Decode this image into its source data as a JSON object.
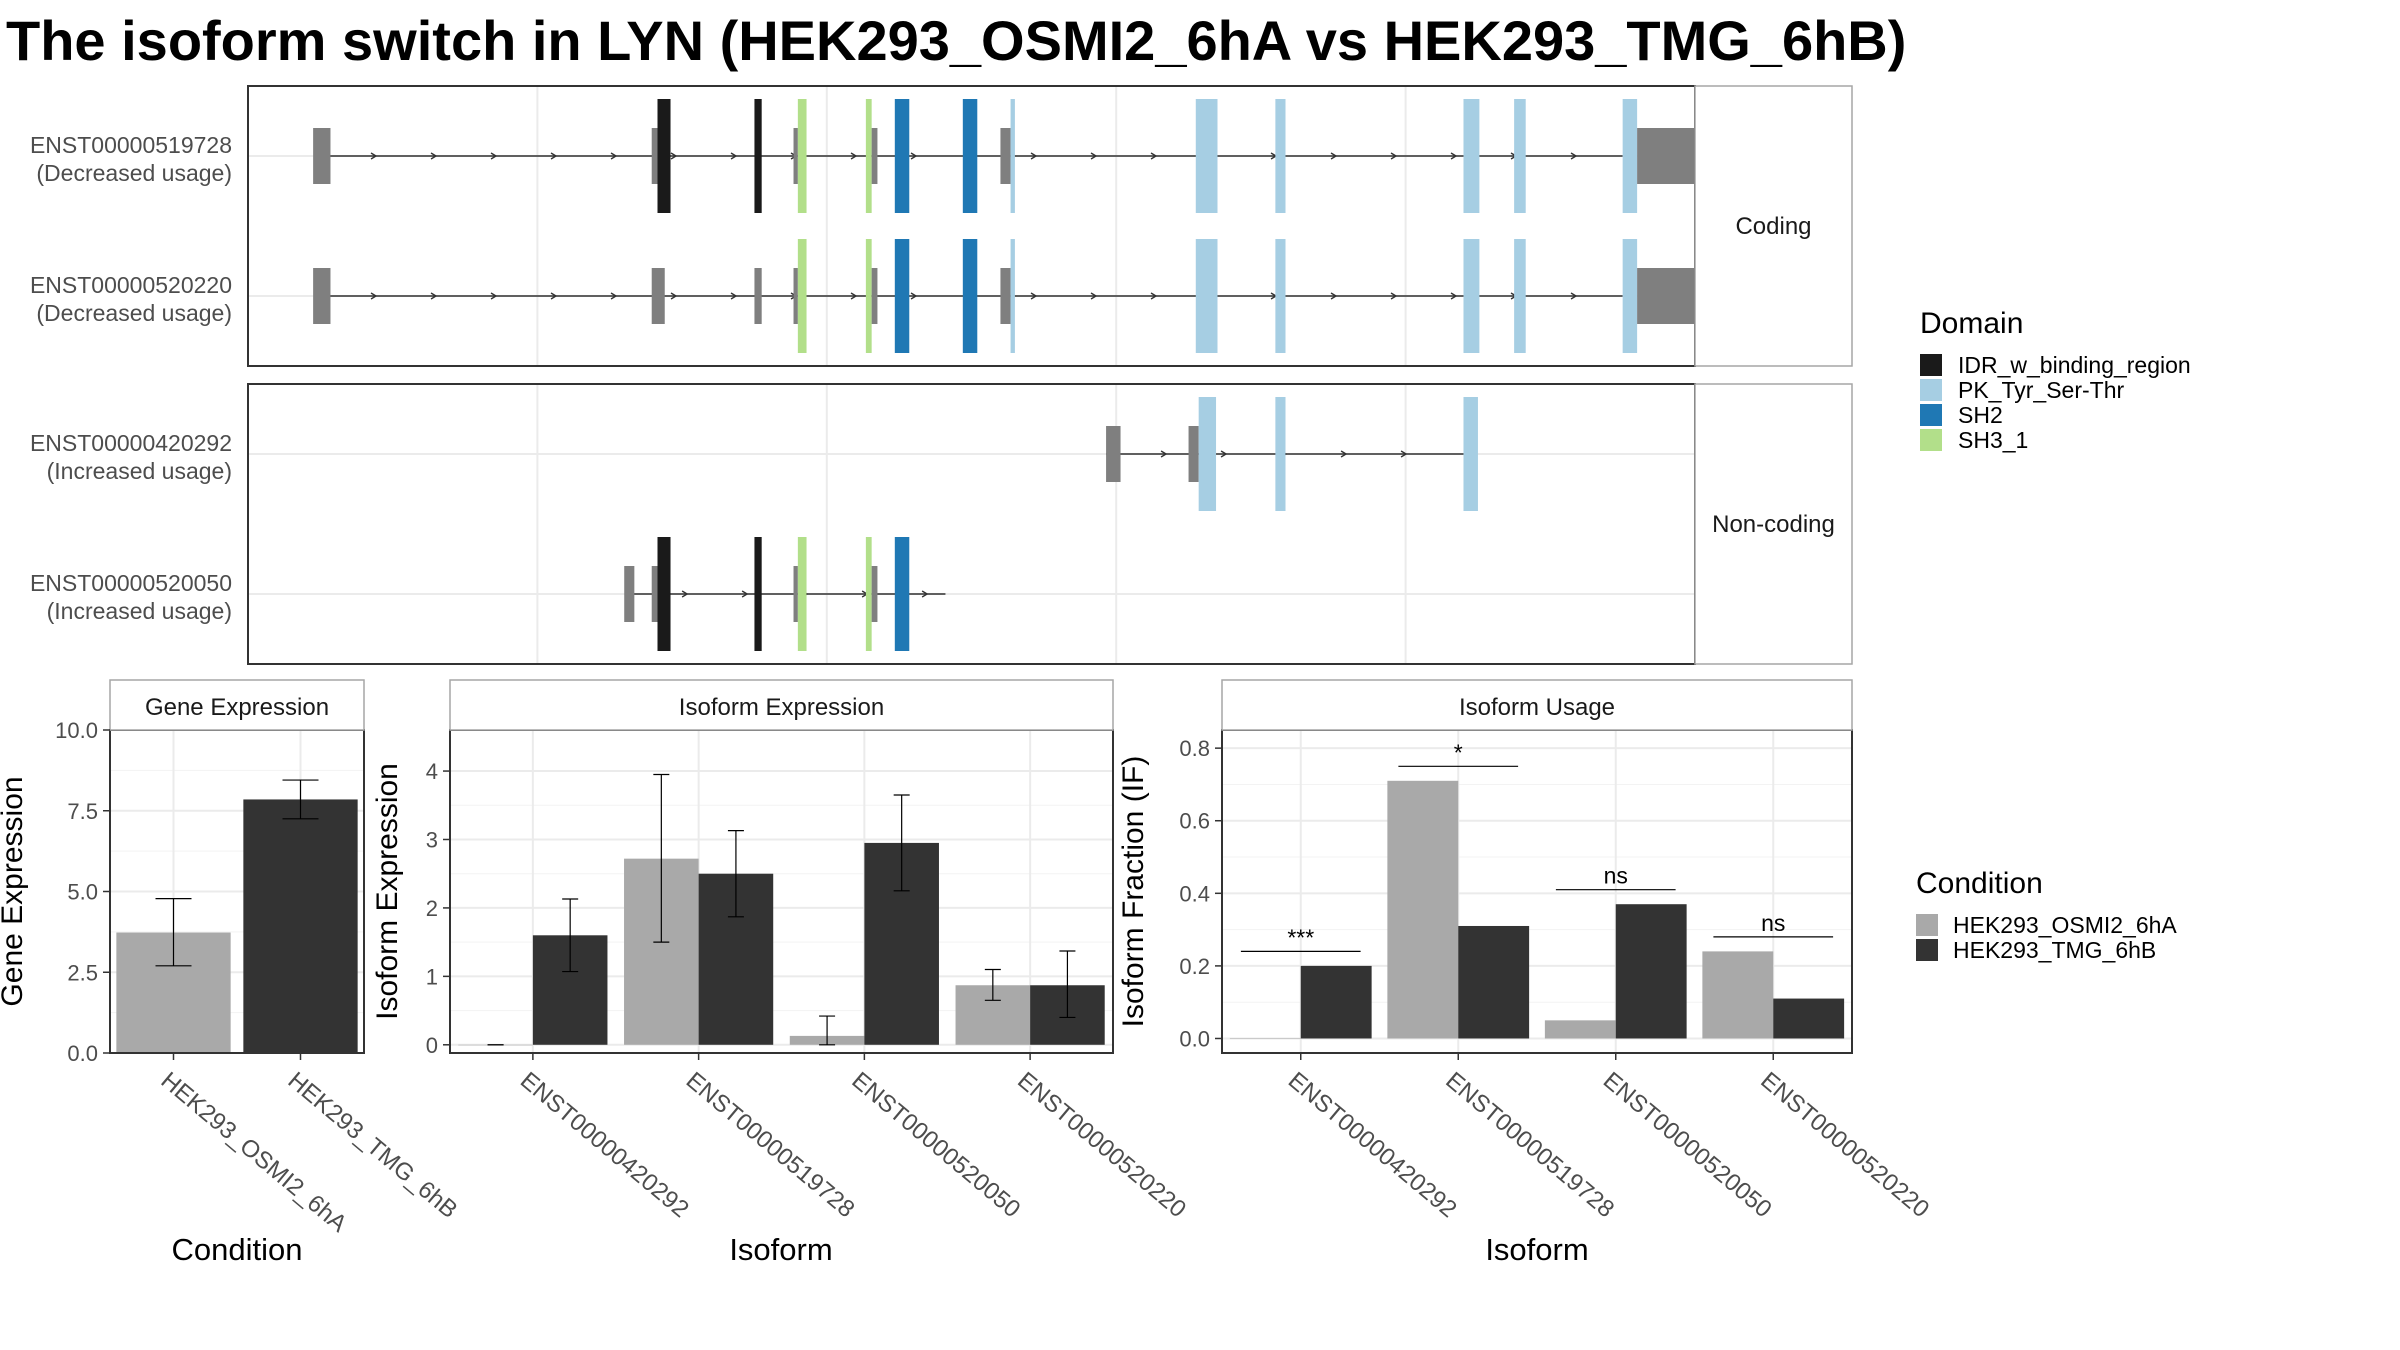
{
  "title": "The isoform switch in LYN (HEK293_OSMI2_6hA vs HEK293_TMG_6hB)",
  "colors": {
    "intron": "#333333",
    "utr": "#7f7f7f",
    "condition_a": "#a9a9a9",
    "condition_b": "#333333",
    "panel_border": "#333333",
    "strip_border": "#a6a6a6",
    "grid": "#ebebeb"
  },
  "structure": {
    "x_range": [
      0,
      1000
    ],
    "domain_colors": {
      "IDR_w_binding_region": "#1a1a1a",
      "PK_Tyr_Ser-Thr": "#a6cee3",
      "SH2": "#1f78b4",
      "SH3_1": "#b2df8a"
    },
    "legend_title": "Domain",
    "legend_items": [
      "IDR_w_binding_region",
      "PK_Tyr_Ser-Thr",
      "SH2",
      "SH3_1"
    ],
    "facets": [
      {
        "label": "Coding",
        "transcripts": [
          {
            "id": "ENST00000519728",
            "note": "(Decreased usage)",
            "intron": [
              47,
              950
            ],
            "segments": [
              {
                "x": [
                  45,
                  57
                ],
                "h": "utr"
              },
              {
                "x": [
                  279,
                  283
                ],
                "h": "utr"
              },
              {
                "x": [
                  283,
                  292
                ],
                "h": "IDR_w_binding_region"
              },
              {
                "x": [
                  350,
                  355
                ],
                "h": "IDR_w_binding_region"
              },
              {
                "x": [
                  377,
                  380
                ],
                "h": "utr"
              },
              {
                "x": [
                  380,
                  386
                ],
                "h": "SH3_1"
              },
              {
                "x": [
                  427,
                  431
                ],
                "h": "SH3_1"
              },
              {
                "x": [
                  431,
                  435
                ],
                "h": "utr"
              },
              {
                "x": [
                  447,
                  457
                ],
                "h": "SH2"
              },
              {
                "x": [
                  494,
                  504
                ],
                "h": "SH2"
              },
              {
                "x": [
                  520,
                  527
                ],
                "h": "utr"
              },
              {
                "x": [
                  527,
                  530
                ],
                "h": "PK_Tyr_Ser-Thr"
              },
              {
                "x": [
                  655,
                  670
                ],
                "h": "PK_Tyr_Ser-Thr"
              },
              {
                "x": [
                  710,
                  717
                ],
                "h": "PK_Tyr_Ser-Thr"
              },
              {
                "x": [
                  840,
                  851
                ],
                "h": "PK_Tyr_Ser-Thr"
              },
              {
                "x": [
                  875,
                  883
                ],
                "h": "PK_Tyr_Ser-Thr"
              },
              {
                "x": [
                  950,
                  960
                ],
                "h": "PK_Tyr_Ser-Thr"
              },
              {
                "x": [
                  960,
                  1020
                ],
                "h": "utr"
              }
            ]
          },
          {
            "id": "ENST00000520220",
            "note": "(Decreased usage)",
            "intron": [
              47,
              950
            ],
            "segments": [
              {
                "x": [
                  45,
                  57
                ],
                "h": "utr"
              },
              {
                "x": [
                  279,
                  288
                ],
                "h": "utr"
              },
              {
                "x": [
                  350,
                  355
                ],
                "h": "utr"
              },
              {
                "x": [
                  377,
                  380
                ],
                "h": "utr"
              },
              {
                "x": [
                  380,
                  386
                ],
                "h": "SH3_1"
              },
              {
                "x": [
                  427,
                  431
                ],
                "h": "SH3_1"
              },
              {
                "x": [
                  431,
                  435
                ],
                "h": "utr"
              },
              {
                "x": [
                  447,
                  457
                ],
                "h": "SH2"
              },
              {
                "x": [
                  494,
                  504
                ],
                "h": "SH2"
              },
              {
                "x": [
                  520,
                  527
                ],
                "h": "utr"
              },
              {
                "x": [
                  527,
                  530
                ],
                "h": "PK_Tyr_Ser-Thr"
              },
              {
                "x": [
                  655,
                  670
                ],
                "h": "PK_Tyr_Ser-Thr"
              },
              {
                "x": [
                  710,
                  717
                ],
                "h": "PK_Tyr_Ser-Thr"
              },
              {
                "x": [
                  840,
                  851
                ],
                "h": "PK_Tyr_Ser-Thr"
              },
              {
                "x": [
                  875,
                  883
                ],
                "h": "PK_Tyr_Ser-Thr"
              },
              {
                "x": [
                  950,
                  960
                ],
                "h": "PK_Tyr_Ser-Thr"
              },
              {
                "x": [
                  960,
                  1020
                ],
                "h": "utr"
              }
            ]
          }
        ]
      },
      {
        "label": "Non-coding",
        "transcripts": [
          {
            "id": "ENST00000420292",
            "note": "(Increased usage)",
            "intron": [
              593,
              840
            ],
            "segments": [
              {
                "x": [
                  593,
                  603
                ],
                "h": "utr"
              },
              {
                "x": [
                  650,
                  657
                ],
                "h": "utr"
              },
              {
                "x": [
                  657,
                  669
                ],
                "h": "PK_Tyr_Ser-Thr"
              },
              {
                "x": [
                  710,
                  717
                ],
                "h": "PK_Tyr_Ser-Thr"
              },
              {
                "x": [
                  840,
                  850
                ],
                "h": "PK_Tyr_Ser-Thr"
              }
            ]
          },
          {
            "id": "ENST00000520050",
            "note": "(Increased usage)",
            "intron": [
              262,
              482
            ],
            "segments": [
              {
                "x": [
                  260,
                  267
                ],
                "h": "utr"
              },
              {
                "x": [
                  279,
                  283
                ],
                "h": "utr"
              },
              {
                "x": [
                  283,
                  292
                ],
                "h": "IDR_w_binding_region"
              },
              {
                "x": [
                  350,
                  355
                ],
                "h": "IDR_w_binding_region"
              },
              {
                "x": [
                  377,
                  380
                ],
                "h": "utr"
              },
              {
                "x": [
                  380,
                  386
                ],
                "h": "SH3_1"
              },
              {
                "x": [
                  427,
                  431
                ],
                "h": "SH3_1"
              },
              {
                "x": [
                  431,
                  435
                ],
                "h": "utr"
              },
              {
                "x": [
                  447,
                  457
                ],
                "h": "SH2"
              }
            ]
          }
        ]
      }
    ]
  },
  "chart_data": [
    {
      "type": "bar",
      "title": "Gene Expression",
      "xlabel": "Condition",
      "ylabel": "Gene Expression",
      "categories": [
        "HEK293_OSMI2_6hA",
        "HEK293_TMG_6hB"
      ],
      "values": [
        3.73,
        7.85
      ],
      "error": [
        [
          2.7,
          4.78
        ],
        [
          7.25,
          8.45
        ]
      ],
      "ylim": [
        0,
        10
      ],
      "yticks": [
        "0.0",
        "2.5",
        "5.0",
        "7.5",
        "10.0"
      ],
      "ytick_values": [
        0,
        2.5,
        5,
        7.5,
        10
      ],
      "grid": true
    },
    {
      "type": "bar",
      "title": "Isoform Expression",
      "xlabel": "Isoform",
      "ylabel": "Isoform Expression",
      "categories": [
        "ENST00000420292",
        "ENST00000519728",
        "ENST00000520050",
        "ENST00000520220"
      ],
      "series": [
        {
          "name": "HEK293_OSMI2_6hA",
          "values": [
            0.0,
            2.72,
            0.13,
            0.87
          ],
          "error": [
            [
              0.0,
              0.0
            ],
            [
              1.5,
              3.95
            ],
            [
              0.0,
              0.42
            ],
            [
              0.65,
              1.1
            ]
          ]
        },
        {
          "name": "HEK293_TMG_6hB",
          "values": [
            1.6,
            2.5,
            2.95,
            0.87
          ],
          "error": [
            [
              1.07,
              2.13
            ],
            [
              1.87,
              3.13
            ],
            [
              2.25,
              3.65
            ],
            [
              0.4,
              1.37
            ]
          ]
        }
      ],
      "ylim": [
        -0.12,
        4.6
      ],
      "yticks": [
        "0",
        "1",
        "2",
        "3",
        "4"
      ],
      "ytick_values": [
        0,
        1,
        2,
        3,
        4
      ],
      "grid": true
    },
    {
      "type": "bar",
      "title": "Isoform Usage",
      "xlabel": "Isoform",
      "ylabel": "Isoform Fraction (IF)",
      "categories": [
        "ENST00000420292",
        "ENST00000519728",
        "ENST00000520050",
        "ENST00000520220"
      ],
      "series": [
        {
          "name": "HEK293_OSMI2_6hA",
          "values": [
            0.0,
            0.71,
            0.05,
            0.24
          ]
        },
        {
          "name": "HEK293_TMG_6hB",
          "values": [
            0.2,
            0.31,
            0.37,
            0.11
          ]
        }
      ],
      "annotations": [
        {
          "label": "***",
          "y": 0.24
        },
        {
          "label": "*",
          "y": 0.75
        },
        {
          "label": "ns",
          "y": 0.41
        },
        {
          "label": "ns",
          "y": 0.28
        }
      ],
      "ylim": [
        -0.04,
        0.85
      ],
      "yticks": [
        "0.0",
        "0.2",
        "0.4",
        "0.6",
        "0.8"
      ],
      "ytick_values": [
        0,
        0.2,
        0.4,
        0.6,
        0.8
      ],
      "grid": true
    }
  ],
  "condition_legend": {
    "title": "Condition",
    "items": [
      "HEK293_OSMI2_6hA",
      "HEK293_TMG_6hB"
    ]
  }
}
